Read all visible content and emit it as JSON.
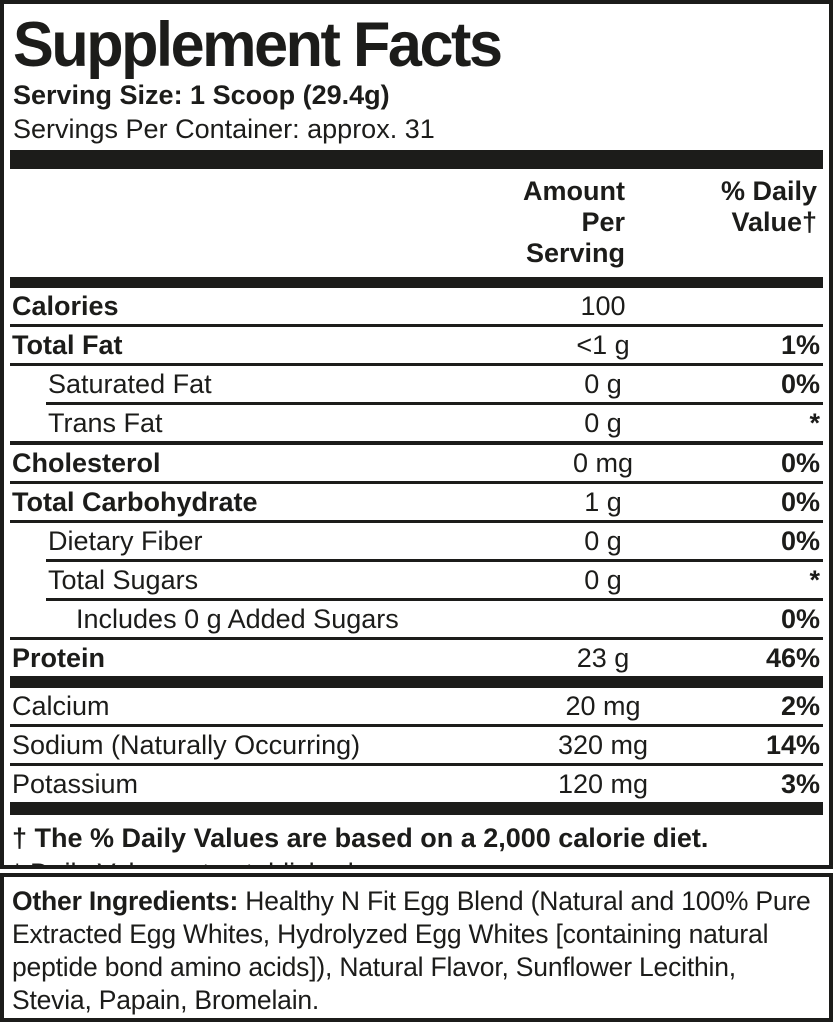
{
  "panel": {
    "title": "Supplement Facts",
    "serving_size": "Serving Size: 1 Scoop (29.4g)",
    "servings_per_container": "Servings Per Container: approx. 31",
    "amount_header_line1": "Amount Per",
    "amount_header_line2": "Serving",
    "pct_header_line1": "% Daily",
    "pct_header_line2": "Value†"
  },
  "rows": [
    {
      "name": "Calories",
      "amount": "100",
      "pct": ""
    },
    {
      "name": "Total Fat",
      "amount": "<1 g",
      "pct": "1%"
    },
    {
      "name": "Saturated Fat",
      "amount": "0 g",
      "pct": "0%"
    },
    {
      "name": "Trans Fat",
      "amount": "0 g",
      "pct": "*"
    },
    {
      "name": "Cholesterol",
      "amount": "0 mg",
      "pct": "0%"
    },
    {
      "name": "Total Carbohydrate",
      "amount": "1 g",
      "pct": "0%"
    },
    {
      "name": "Dietary Fiber",
      "amount": "0 g",
      "pct": "0%"
    },
    {
      "name": "Total Sugars",
      "amount": "0 g",
      "pct": "*"
    },
    {
      "name": "Includes 0 g Added Sugars",
      "amount": "",
      "pct": "0%"
    },
    {
      "name": "Protein",
      "amount": "23 g",
      "pct": "46%"
    },
    {
      "name": "Calcium",
      "amount": "20 mg",
      "pct": "2%"
    },
    {
      "name": "Sodium (Naturally Occurring)",
      "amount": "320 mg",
      "pct": "14%"
    },
    {
      "name": "Potassium",
      "amount": "120 mg",
      "pct": "3%"
    }
  ],
  "footnotes": {
    "daily_value": "† The % Daily Values are based on a 2,000 calorie diet.",
    "not_established": "* Daily Value not established."
  },
  "other_ingredients": {
    "label": "Other Ingredients:",
    "text": "Healthy N Fit Egg Blend (Natural and 100% Pure Extracted Egg Whites, Hydrolyzed Egg Whites [containing natural peptide bond amino acids]), Natural Flavor, Sunflower Lecithin, Stevia, Papain, Bromelain."
  },
  "colors": {
    "ink": "#1c1c1a",
    "background": "#ffffff"
  }
}
